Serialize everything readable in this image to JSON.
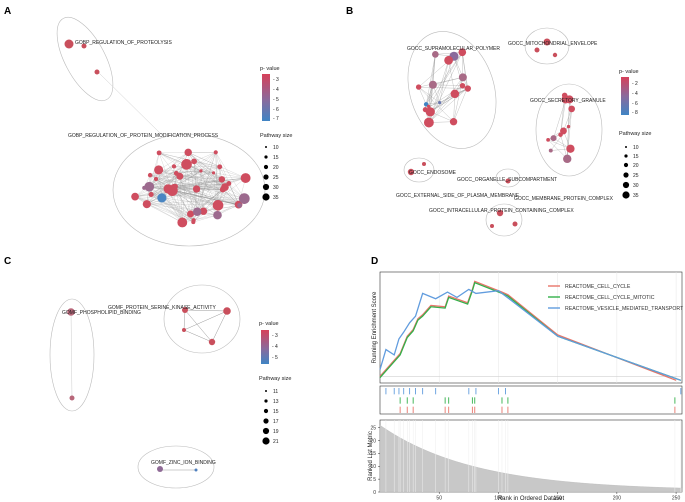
{
  "panels": [
    {
      "letter": "A",
      "nodes": [
        "GOBP_REGULATION_OF_PROTEOLYSIS",
        "GOBP_REGULATION_OF_PROTEIN_MODIFICATION_PROCESS"
      ],
      "legend": {
        "pvalue_title": "p- value",
        "pvalue_ticks": [
          "- 3",
          "- 4",
          "- 5",
          "- 6",
          "- 7"
        ],
        "size_title": "Pathway size",
        "size_ticks": [
          "10",
          "15",
          "20",
          "25",
          "30",
          "35"
        ]
      }
    },
    {
      "letter": "B",
      "nodes": [
        "GOCC_SUPRAMOLECULAR_POLYMER",
        "GOCC_MITOCHONDRIAL_ENVELOPE",
        "GOCC_SECRETORY_GRANULE",
        "GOCC_ENDOSOME",
        "GOCC_ORGANELLE_SUBCOMPARTMENT",
        "GOCC_EXTERNAL_SIDE_OF_PLASMA_MEMBRANE",
        "GOCC_MEMBRANE_PROTEIN_COMPLEX",
        "GOCC_INTRACELLULAR_PROTEIN_CONTAINING_COMPLEX"
      ],
      "legend": {
        "pvalue_title": "p- value",
        "pvalue_ticks": [
          "- 2",
          "- 4",
          "- 6",
          "- 8"
        ],
        "size_title": "Pathway size",
        "size_ticks": [
          "10",
          "15",
          "20",
          "25",
          "30",
          "35"
        ]
      }
    },
    {
      "letter": "C",
      "nodes": [
        "GOMF_PROTEIN_SERINE_KINASE_ACTIVITY",
        "GOMF_PHOSPHOLIPID_BINDING",
        "GOMF_ZINC_ION_BINDING"
      ],
      "legend": {
        "pvalue_title": "p- value",
        "pvalue_ticks": [
          "- 3",
          "- 4",
          "- 5"
        ],
        "size_title": "Pathway size",
        "size_ticks": [
          "11",
          "13",
          "15",
          "17",
          "19",
          "21"
        ]
      }
    }
  ],
  "chart_data": {
    "type": "line",
    "letter": "D",
    "title": "",
    "xlabel": "Rank in Ordered Dataset",
    "ylabel_top": "Running Enrichment Score",
    "ylabel_bottom": "Ranked List Metric",
    "xlim": [
      0,
      255
    ],
    "ylim_top": [
      -0.05,
      0.78
    ],
    "ylim_bottom": [
      0,
      28
    ],
    "x_ticks": [
      50,
      100,
      150,
      200,
      250
    ],
    "y_ticks_bottom": [
      0,
      5,
      10,
      15,
      20,
      25
    ],
    "series": [
      {
        "name": "REACTOME_CELL_CYCLE",
        "color": "#e8746a",
        "x": [
          0,
          17,
          23,
          28,
          32,
          36,
          43,
          55,
          58,
          74,
          78,
          80,
          103,
          108,
          150,
          250
        ],
        "y": [
          0.0,
          0.17,
          0.3,
          0.35,
          0.43,
          0.46,
          0.53,
          0.52,
          0.6,
          0.55,
          0.65,
          0.71,
          0.63,
          0.61,
          0.31,
          -0.03
        ]
      },
      {
        "name": "REACTOME_CELL_CYCLE_MITOTIC",
        "color": "#33b04a",
        "x": [
          0,
          17,
          23,
          28,
          32,
          36,
          43,
          55,
          58,
          74,
          78,
          80,
          103,
          108,
          150,
          254
        ],
        "y": [
          -0.01,
          0.16,
          0.29,
          0.34,
          0.42,
          0.45,
          0.52,
          0.51,
          0.59,
          0.54,
          0.64,
          0.7,
          0.62,
          0.6,
          0.3,
          -0.03
        ]
      },
      {
        "name": "REACTOME_VESICLE_MEDIATED_TRANSPORT",
        "color": "#619cde",
        "x": [
          0,
          5,
          12,
          16,
          20,
          25,
          30,
          36,
          47,
          57,
          65,
          75,
          81,
          100,
          106,
          150,
          254
        ],
        "y": [
          0.05,
          0.2,
          0.16,
          0.28,
          0.33,
          0.4,
          0.45,
          0.62,
          0.58,
          0.63,
          0.59,
          0.65,
          0.62,
          0.64,
          0.6,
          0.3,
          -0.03
        ]
      }
    ],
    "hits": [
      {
        "name": "REACTOME_CELL_CYCLE",
        "color": "#e8746a",
        "x": [
          17,
          23,
          28,
          55,
          58,
          78,
          80,
          103,
          108,
          249
        ]
      },
      {
        "name": "REACTOME_CELL_CYCLE_MITOTIC",
        "color": "#33b04a",
        "x": [
          17,
          23,
          28,
          55,
          58,
          78,
          80,
          103,
          108,
          249
        ]
      },
      {
        "name": "REACTOME_VESICLE_MEDIATED_TRANSPORT",
        "color": "#619cde",
        "x": [
          5,
          12,
          16,
          20,
          25,
          30,
          36,
          47,
          75,
          81,
          100,
          106,
          254
        ]
      }
    ],
    "ranked_metric": {
      "start": 26,
      "end": 0.5,
      "n": 255
    }
  }
}
